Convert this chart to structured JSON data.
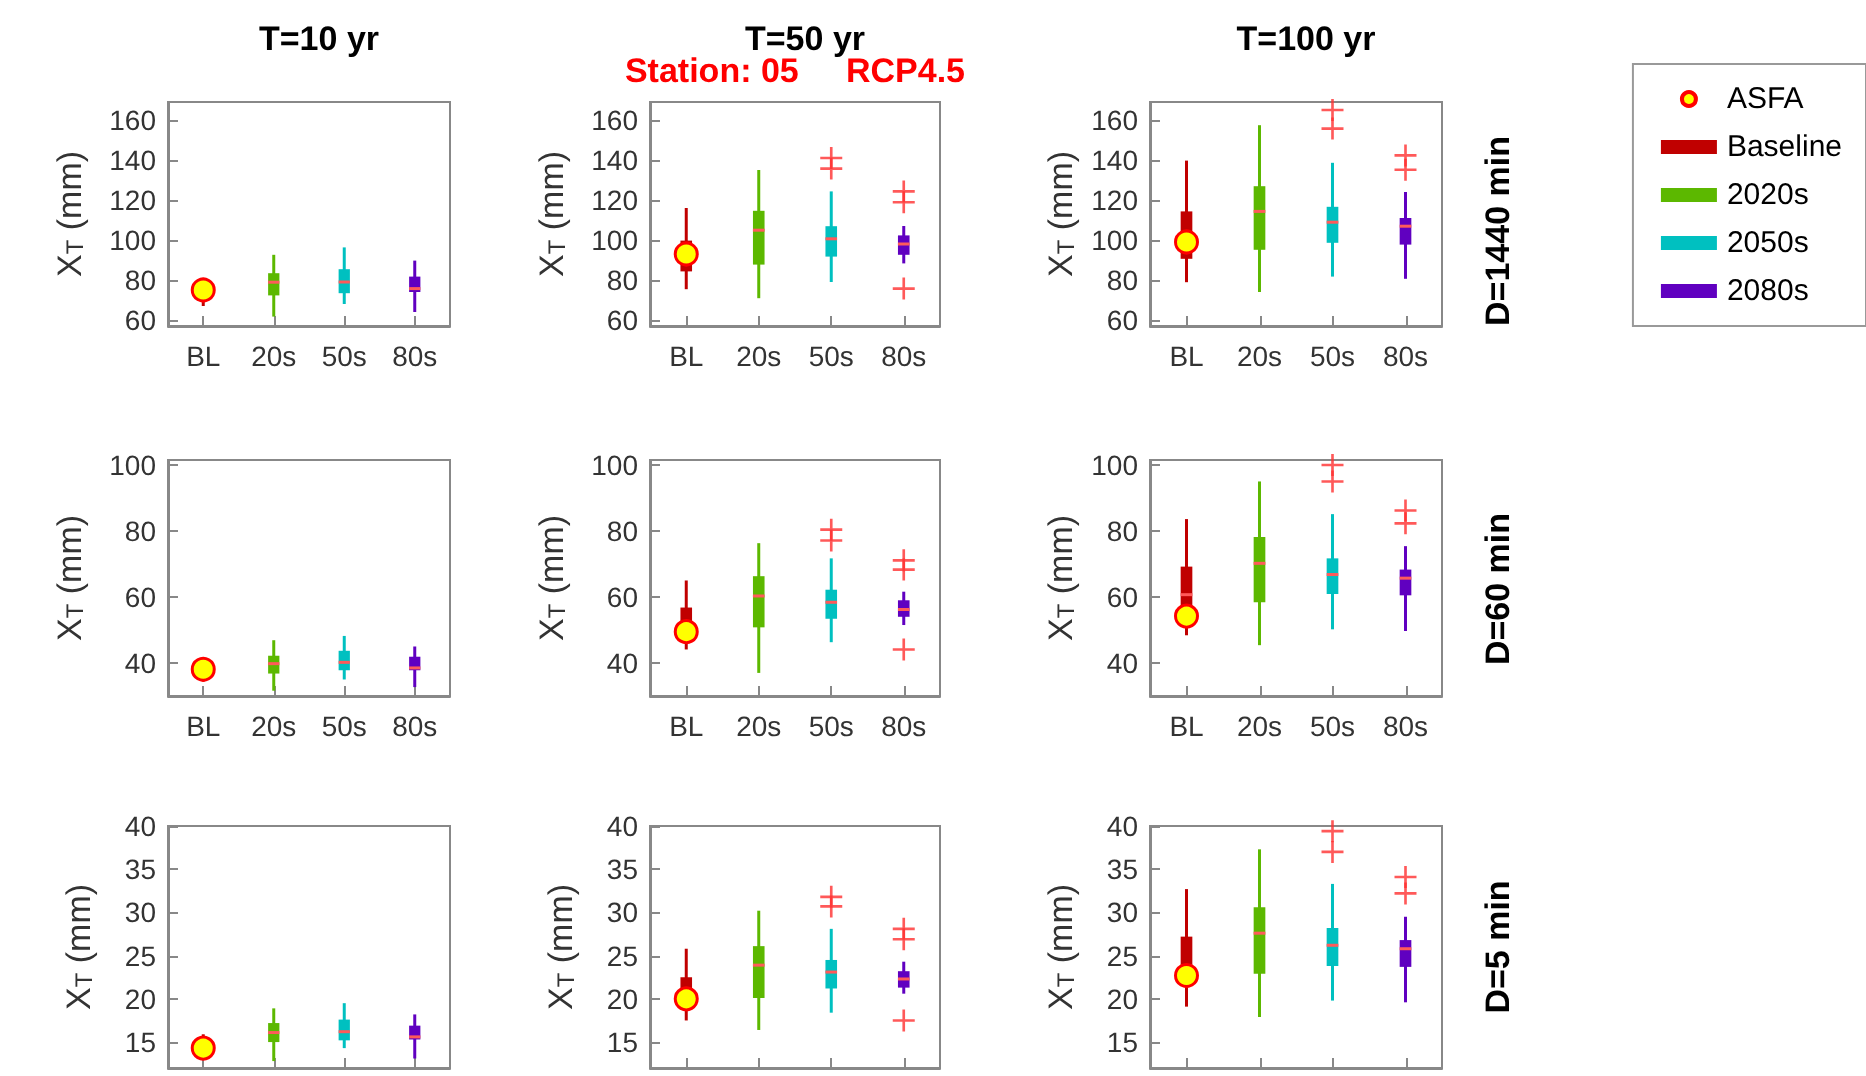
{
  "chart_data": [
    {
      "type": "box",
      "title": "T=10 yr",
      "ylabel": "X$_{T}$ (mm)",
      "categories": [
        "BL",
        "20s",
        "50s",
        "80s"
      ],
      "ylim": [
        57,
        169
      ],
      "yticks": [
        60,
        80,
        100,
        120,
        140,
        160
      ],
      "series": [
        {
          "type": "scatter",
          "color": "#ffff00",
          "values": [
            75,
            null,
            null,
            null
          ]
        },
        {
          "color": "#c00000",
          "boxes": [
            {
              "low": 67,
              "q1": 69.5,
              "median": 71,
              "q3": 74,
              "high": 78
            },
            null,
            null,
            null
          ]
        },
        {
          "color": "#5cb800",
          "boxes": [
            null,
            {
              "low": 61.7,
              "q1": 72.3,
              "median": 78.9,
              "q3": 83.4,
              "high": 92.6
            },
            null,
            null
          ]
        },
        {
          "color": "#00c0c0",
          "boxes": [
            null,
            null,
            {
              "low": 68,
              "q1": 73.4,
              "median": 79,
              "q3": 85.4,
              "high": 96.3
            },
            null
          ]
        },
        {
          "color": "#6000c0",
          "boxes": [
            null,
            null,
            null,
            {
              "low": 64,
              "q1": 74,
              "median": 75.7,
              "q3": 81.7,
              "high": 89.7
            }
          ]
        }
      ]
    },
    {
      "type": "box",
      "title": "T=50 yr",
      "subtitle": "Station: 05     RCP4.5",
      "ylabel": "X$_{T}$ (mm)",
      "categories": [
        "BL",
        "20s",
        "50s",
        "80s"
      ],
      "ylim": [
        57,
        169
      ],
      "yticks": [
        60,
        80,
        100,
        120,
        140,
        160
      ],
      "series": [
        {
          "type": "scatter",
          "color": "#ffff00",
          "values": [
            93,
            null,
            null,
            null
          ]
        },
        {
          "color": "#c00000",
          "boxes": [
            {
              "low": 75.4,
              "q1": 84.3,
              "median": 90,
              "q3": 99.7,
              "high": 116
            },
            null,
            null,
            null
          ]
        },
        {
          "color": "#5cb800",
          "boxes": [
            null,
            {
              "low": 70.9,
              "q1": 87.7,
              "median": 104.9,
              "q3": 114.6,
              "high": 135
            },
            null,
            null
          ]
        },
        {
          "color": "#00c0c0",
          "boxes": [
            null,
            null,
            {
              "low": 79,
              "q1": 91.7,
              "median": 100.6,
              "q3": 106.9,
              "high": 124.3,
              "outliers": [
                141,
                135.7
              ]
            },
            null
          ]
        },
        {
          "color": "#6000c0",
          "boxes": [
            null,
            null,
            null,
            {
              "low": 88.3,
              "q1": 92.6,
              "median": 98,
              "q3": 102.3,
              "high": 107,
              "outliers": [
                124.3,
                118.9,
                75.7
              ]
            }
          ]
        }
      ]
    },
    {
      "type": "box",
      "title": "T=100 yr",
      "ylabel": "X$_{T}$ (mm)",
      "categories": [
        "BL",
        "20s",
        "50s",
        "80s"
      ],
      "ylim": [
        57,
        169
      ],
      "yticks": [
        60,
        80,
        100,
        120,
        140,
        160
      ],
      "legend": "right",
      "annotations": [
        "D=1440 min"
      ],
      "series": [
        {
          "type": "scatter",
          "name": "ASFA",
          "color": "#ffff00",
          "values": [
            99,
            null,
            null,
            null
          ]
        },
        {
          "name": "Baseline",
          "color": "#c00000",
          "boxes": [
            {
              "low": 78.9,
              "q1": 90.6,
              "median": 98.3,
              "q3": 114.3,
              "high": 139.7
            },
            null,
            null,
            null
          ]
        },
        {
          "name": "2020s",
          "color": "#5cb800",
          "boxes": [
            null,
            {
              "low": 74,
              "q1": 95.1,
              "median": 114.3,
              "q3": 126.9,
              "high": 157.4
            },
            null,
            null
          ]
        },
        {
          "name": "2050s",
          "color": "#00c0c0",
          "boxes": [
            null,
            null,
            {
              "low": 81.7,
              "q1": 98.6,
              "median": 108.9,
              "q3": 116.6,
              "high": 138.6,
              "outliers": [
                165,
                155.7
              ]
            },
            null
          ]
        },
        {
          "name": "2080s",
          "color": "#6000c0",
          "boxes": [
            null,
            null,
            null,
            {
              "low": 80.6,
              "q1": 97.7,
              "median": 106.9,
              "q3": 111,
              "high": 124,
              "outliers": [
                142.3,
                135.1
              ]
            }
          ]
        }
      ]
    },
    {
      "type": "box",
      "ylabel": "X$_{T}$ (mm)",
      "categories": [
        "BL",
        "20s",
        "50s",
        "80s"
      ],
      "ylim": [
        30,
        101.5
      ],
      "yticks": [
        40,
        60,
        80,
        100
      ],
      "series": [
        {
          "type": "scatter",
          "color": "#ffff00",
          "values": [
            38.1,
            null,
            null,
            null
          ]
        },
        {
          "color": "#c00000",
          "boxes": [
            {
              "low": 34.4,
              "q1": 35,
              "median": 35.7,
              "q3": 37.5,
              "high": 38.9
            },
            null,
            null,
            null
          ]
        },
        {
          "color": "#5cb800",
          "boxes": [
            null,
            {
              "low": 31.6,
              "q1": 36.8,
              "median": 39.8,
              "q3": 42.2,
              "high": 46.9
            },
            null,
            null
          ]
        },
        {
          "color": "#00c0c0",
          "boxes": [
            null,
            null,
            {
              "low": 35,
              "q1": 37.8,
              "median": 40.2,
              "q3": 43.7,
              "high": 48.2
            },
            null
          ]
        },
        {
          "color": "#6000c0",
          "boxes": [
            null,
            null,
            null,
            {
              "low": 32.7,
              "q1": 37.8,
              "median": 38.5,
              "q3": 41.9,
              "high": 45
            }
          ]
        }
      ]
    },
    {
      "type": "box",
      "ylabel": "X$_{T}$ (mm)",
      "categories": [
        "BL",
        "20s",
        "50s",
        "80s"
      ],
      "ylim": [
        30,
        101.5
      ],
      "yticks": [
        40,
        60,
        80,
        100
      ],
      "series": [
        {
          "type": "scatter",
          "color": "#ffff00",
          "values": [
            49.5,
            null,
            null,
            null
          ]
        },
        {
          "color": "#c00000",
          "boxes": [
            {
              "low": 44.1,
              "q1": 49,
              "median": 52.1,
              "q3": 56.8,
              "high": 65
            },
            null,
            null,
            null
          ]
        },
        {
          "color": "#5cb800",
          "boxes": [
            null,
            {
              "low": 37,
              "q1": 50.8,
              "median": 60.3,
              "q3": 66.3,
              "high": 76.3
            },
            null,
            null
          ]
        },
        {
          "color": "#00c0c0",
          "boxes": [
            null,
            null,
            {
              "low": 46.3,
              "q1": 53.4,
              "median": 58.4,
              "q3": 62.2,
              "high": 71.7,
              "outliers": [
                80.4,
                77.1
              ]
            },
            null
          ]
        },
        {
          "color": "#6000c0",
          "boxes": [
            null,
            null,
            null,
            {
              "low": 51.5,
              "q1": 54,
              "median": 56.2,
              "q3": 59,
              "high": 61.6,
              "outliers": [
                71.1,
                68.3,
                44.1
              ]
            }
          ]
        }
      ]
    },
    {
      "type": "box",
      "ylabel": "X$_{T}$ (mm)",
      "categories": [
        "BL",
        "20s",
        "50s",
        "80s"
      ],
      "ylim": [
        30,
        101.5
      ],
      "yticks": [
        40,
        60,
        80,
        100
      ],
      "annotations": [
        "D=60 min"
      ],
      "series": [
        {
          "type": "scatter",
          "color": "#ffff00",
          "values": [
            54.2,
            null,
            null,
            null
          ]
        },
        {
          "color": "#c00000",
          "boxes": [
            {
              "low": 48.4,
              "q1": 53.4,
              "median": 60.7,
              "q3": 69.2,
              "high": 83.6
            },
            null,
            null,
            null
          ]
        },
        {
          "color": "#5cb800",
          "boxes": [
            null,
            {
              "low": 45.4,
              "q1": 58.4,
              "median": 70.2,
              "q3": 78.2,
              "high": 95
            },
            null,
            null
          ]
        },
        {
          "color": "#00c0c0",
          "boxes": [
            null,
            null,
            {
              "low": 50.2,
              "q1": 60.9,
              "median": 66.8,
              "q3": 71.7,
              "high": 85.1,
              "outliers": [
                100,
                95
              ]
            },
            null
          ]
        },
        {
          "color": "#6000c0",
          "boxes": [
            null,
            null,
            null,
            {
              "low": 49.7,
              "q1": 60.5,
              "median": 65.7,
              "q3": 68.3,
              "high": 75.4,
              "outliers": [
                86.2,
                82.3
              ]
            }
          ]
        }
      ]
    },
    {
      "type": "box",
      "ylabel": "X$_{T}$ (mm)",
      "categories": [
        null,
        null,
        null,
        null
      ],
      "tick_labels": "y",
      "ylim": [
        12,
        40
      ],
      "yticks": [
        15,
        20,
        25,
        30,
        35,
        40
      ],
      "series": [
        {
          "type": "scatter",
          "color": "#ffff00",
          "values": [
            14.3,
            null,
            null,
            null
          ]
        },
        {
          "color": "#c00000",
          "boxes": [
            {
              "low": 13.7,
              "q1": 14,
              "median": 14.5,
              "q3": 14.8,
              "high": 15.9
            },
            null,
            null,
            null
          ]
        },
        {
          "color": "#5cb800",
          "boxes": [
            null,
            {
              "low": 12.8,
              "q1": 15,
              "median": 16.1,
              "q3": 17.2,
              "high": 18.9
            },
            null,
            null
          ]
        },
        {
          "color": "#00c0c0",
          "boxes": [
            null,
            null,
            {
              "low": 14.3,
              "q1": 15.2,
              "median": 16.2,
              "q3": 17.6,
              "high": 19.5
            },
            null
          ]
        },
        {
          "color": "#6000c0",
          "boxes": [
            null,
            null,
            null,
            {
              "low": 13.1,
              "q1": 15.3,
              "median": 15.6,
              "q3": 16.9,
              "high": 18.2
            }
          ]
        }
      ]
    },
    {
      "type": "box",
      "ylabel": "X$_{T}$ (mm)",
      "categories": [
        null,
        null,
        null,
        null
      ],
      "tick_labels": "y",
      "ylim": [
        12,
        40
      ],
      "yticks": [
        15,
        20,
        25,
        30,
        35,
        40
      ],
      "series": [
        {
          "type": "scatter",
          "color": "#ffff00",
          "values": [
            20,
            null,
            null,
            null
          ]
        },
        {
          "color": "#c00000",
          "boxes": [
            {
              "low": 17.5,
              "q1": 19.4,
              "median": 20.6,
              "q3": 22.5,
              "high": 25.8
            },
            null,
            null,
            null
          ]
        },
        {
          "color": "#5cb800",
          "boxes": [
            null,
            {
              "low": 16.4,
              "q1": 20.1,
              "median": 23.9,
              "q3": 26.1,
              "high": 30.2
            },
            null,
            null
          ]
        },
        {
          "color": "#00c0c0",
          "boxes": [
            null,
            null,
            {
              "low": 18.4,
              "q1": 21.2,
              "median": 23.1,
              "q3": 24.5,
              "high": 28.1,
              "outliers": [
                31.8,
                30.7
              ]
            },
            null
          ]
        },
        {
          "color": "#6000c0",
          "boxes": [
            null,
            null,
            null,
            {
              "low": 20.6,
              "q1": 21.3,
              "median": 22.3,
              "q3": 23.2,
              "high": 24.3,
              "outliers": [
                28.1,
                26.9,
                17.5
              ]
            }
          ]
        }
      ]
    },
    {
      "type": "box",
      "ylabel": "X$_{T}$ (mm)",
      "categories": [
        null,
        null,
        null,
        null
      ],
      "tick_labels": "y",
      "ylim": [
        12,
        40
      ],
      "yticks": [
        15,
        20,
        25,
        30,
        35,
        40
      ],
      "annotations": [
        "D=5 min"
      ],
      "series": [
        {
          "type": "scatter",
          "color": "#ffff00",
          "values": [
            22.7,
            null,
            null,
            null
          ]
        },
        {
          "color": "#c00000",
          "boxes": [
            {
              "low": 19.1,
              "q1": 22,
              "median": 23.8,
              "q3": 27.2,
              "high": 32.7
            },
            null,
            null,
            null
          ]
        },
        {
          "color": "#5cb800",
          "boxes": [
            null,
            {
              "low": 17.9,
              "q1": 22.9,
              "median": 27.6,
              "q3": 30.6,
              "high": 37.3
            },
            null,
            null
          ]
        },
        {
          "color": "#00c0c0",
          "boxes": [
            null,
            null,
            {
              "low": 19.8,
              "q1": 23.8,
              "median": 26.2,
              "q3": 28.2,
              "high": 33.3,
              "outliers": [
                39.4,
                37
              ]
            },
            null
          ]
        },
        {
          "color": "#6000c0",
          "boxes": [
            null,
            null,
            null,
            {
              "low": 19.6,
              "q1": 23.7,
              "median": 25.8,
              "q3": 26.8,
              "high": 29.5,
              "outliers": [
                34.1,
                32.2
              ]
            }
          ]
        }
      ]
    }
  ]
}
